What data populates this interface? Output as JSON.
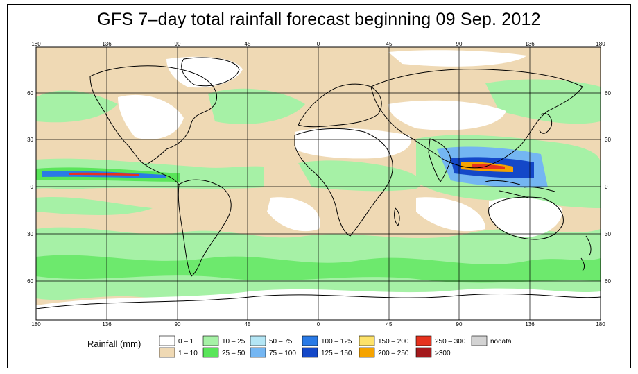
{
  "title": "GFS 7–day total rainfall forecast beginning 09 Sep. 2012",
  "axes": {
    "top_ticks": [
      "180",
      "136",
      "90",
      "45",
      "0",
      "45",
      "90",
      "136",
      "180"
    ],
    "bottom_ticks": [
      "180",
      "136",
      "90",
      "45",
      "0",
      "45",
      "90",
      "136",
      "180"
    ],
    "left_ticks": [
      "60",
      "30",
      "0",
      "30",
      "60"
    ],
    "right_ticks": [
      "60",
      "30",
      "0",
      "30",
      "60"
    ]
  },
  "legend": {
    "title": "Rainfall (mm)",
    "items": [
      {
        "label": "0 – 1",
        "color": "#ffffff"
      },
      {
        "label": "1 – 10",
        "color": "#efd9b4"
      },
      {
        "label": "10 – 25",
        "color": "#a6f1a6"
      },
      {
        "label": "25 – 50",
        "color": "#59e559"
      },
      {
        "label": "50 – 75",
        "color": "#b4e6f5"
      },
      {
        "label": "75 – 100",
        "color": "#74b6f2"
      },
      {
        "label": "100 – 125",
        "color": "#2a7ae6"
      },
      {
        "label": "125 – 150",
        "color": "#1448c8"
      },
      {
        "label": "150 – 200",
        "color": "#fde26a"
      },
      {
        "label": "200 – 250",
        "color": "#f5a300"
      },
      {
        "label": "250 – 300",
        "color": "#e6321e"
      },
      {
        "label": ">300",
        "color": "#a3191c"
      },
      {
        "label": "nodata",
        "color": "#d3d3d3"
      }
    ]
  },
  "colors": {
    "land_outline": "#000000",
    "grid": "#000000",
    "ocean_base": "#efd9b4"
  }
}
